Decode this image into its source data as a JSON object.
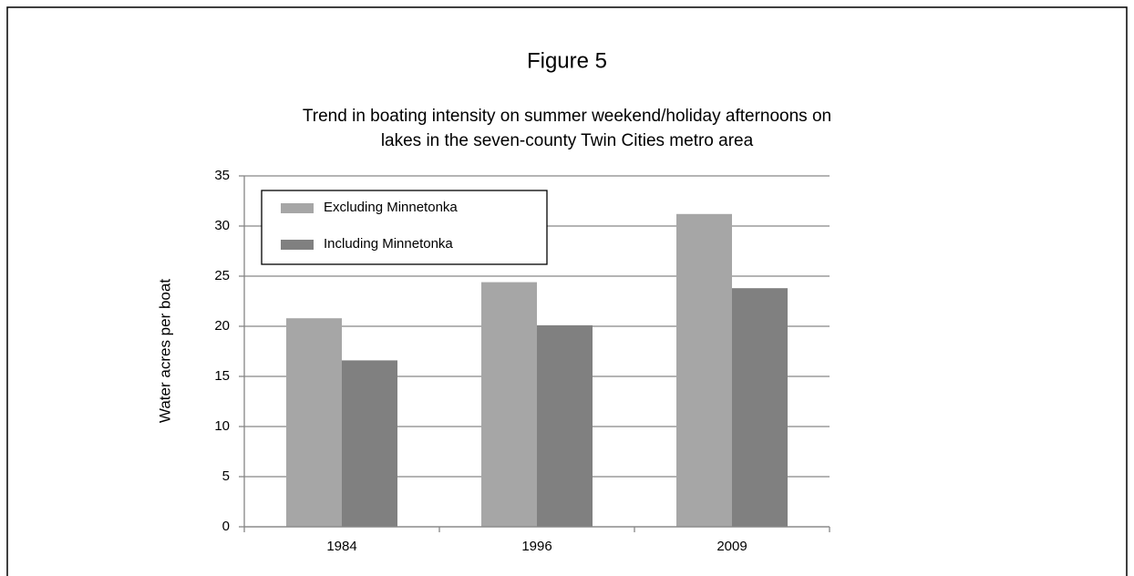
{
  "chart_data": {
    "type": "bar",
    "title": "Figure 5",
    "subtitle": [
      "Trend in boating intensity on summer weekend/holiday afternoons on",
      "lakes in the seven-county Twin Cities metro area"
    ],
    "y_label": "Water acres per boat",
    "categories": [
      "1984",
      "1996",
      "2009"
    ],
    "series": [
      {
        "name": "Excluding Minnetonka",
        "color": "#a6a6a6",
        "values": [
          20.8,
          24.4,
          31.2
        ]
      },
      {
        "name": "Including Minnetonka",
        "color": "#808080",
        "values": [
          16.6,
          20.1,
          23.8
        ]
      }
    ],
    "ylim": [
      0,
      35
    ],
    "yticks": [
      0,
      5,
      10,
      15,
      20,
      25,
      30,
      35
    ],
    "grid": true,
    "legend": "upper left"
  }
}
